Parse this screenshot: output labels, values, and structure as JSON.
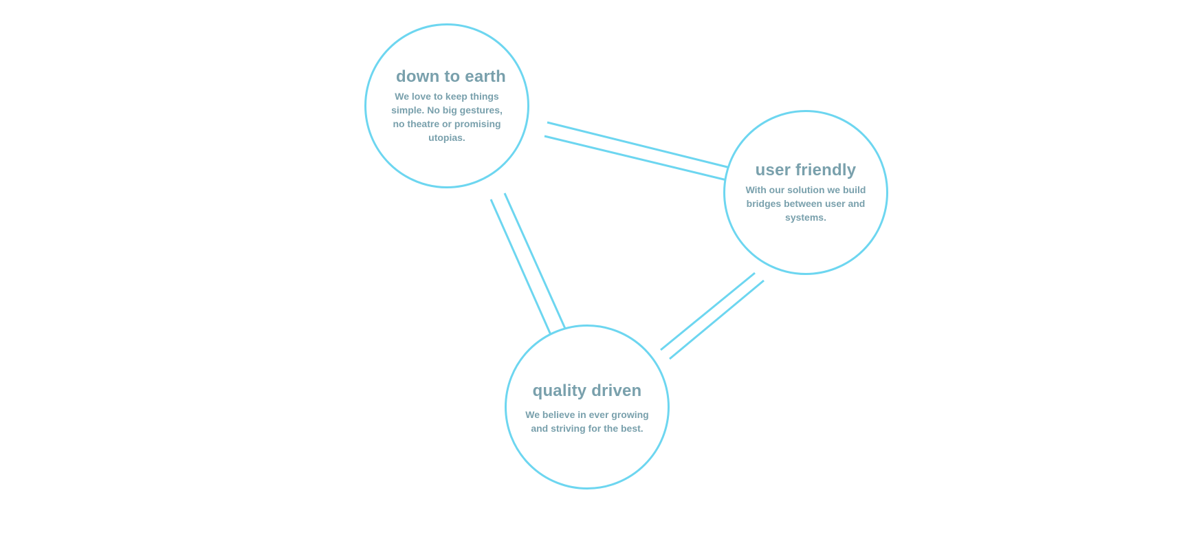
{
  "colors": {
    "circle_stroke": "#6dd6f0",
    "text": "#79a0ac",
    "background": "#ffffff"
  },
  "values": {
    "down_to_earth": {
      "title": "down to earth",
      "text": "We love to keep things simple. No big gestures, no theatre or promising utopias."
    },
    "user_friendly": {
      "title": "user friendly",
      "text": "With our solution we build bridges between user and systems."
    },
    "quality_driven": {
      "title": "quality driven",
      "text": "We believe in ever growing and striving for the best."
    }
  }
}
